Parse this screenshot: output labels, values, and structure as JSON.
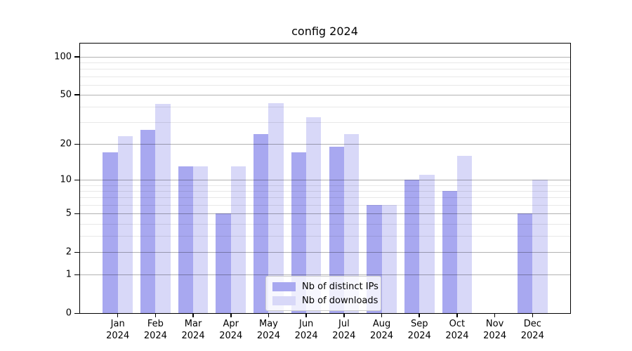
{
  "figure": {
    "title": "config 2024",
    "background_color": "#ffffff",
    "axis_color": "#000000"
  },
  "chart_data": {
    "type": "bar",
    "title": "config 2024",
    "xlabel": "",
    "ylabel": "",
    "yscale": "log10(1+x)",
    "ylim": [
      0,
      127
    ],
    "grid": true,
    "legend_position": "lower center",
    "categories": [
      "Jan 2024",
      "Feb 2024",
      "Mar 2024",
      "Apr 2024",
      "May 2024",
      "Jun 2024",
      "Jul 2024",
      "Aug 2024",
      "Sep 2024",
      "Oct 2024",
      "Nov 2024",
      "Dec 2024"
    ],
    "y_ticks": [
      0,
      1,
      2,
      5,
      10,
      20,
      50,
      100
    ],
    "y_minor_ticks": [
      3,
      4,
      6,
      7,
      8,
      9,
      30,
      40,
      60,
      70,
      80,
      90
    ],
    "series": [
      {
        "key": "distinct-ips",
        "name": "Nb of distinct IPs",
        "color": "#a8a8f0",
        "values": [
          17,
          26,
          13,
          5,
          24,
          17,
          19,
          6,
          10,
          8,
          0,
          5
        ]
      },
      {
        "key": "downloads",
        "name": "Nb of downloads",
        "color": "#d8d8f8",
        "values": [
          23,
          42,
          13,
          13,
          43,
          33,
          24,
          6,
          11,
          16,
          0,
          10
        ]
      }
    ]
  }
}
